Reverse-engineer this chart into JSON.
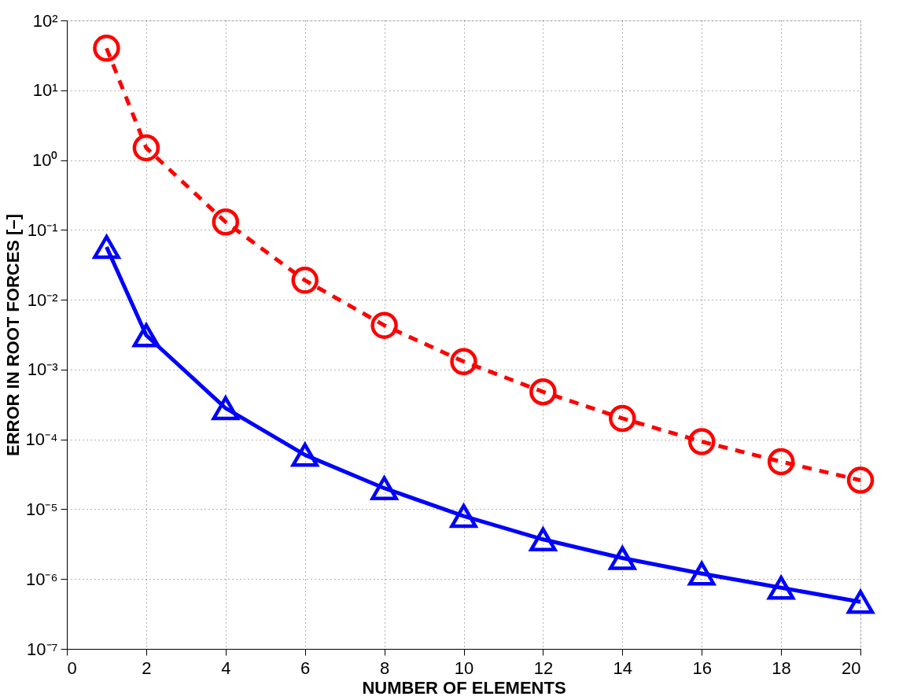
{
  "chart_data": {
    "type": "line",
    "xlabel": "NUMBER OF ELEMENTS",
    "ylabel": "ERROR IN ROOT FORCES [–]",
    "x": [
      1,
      2,
      4,
      6,
      8,
      10,
      12,
      14,
      16,
      18,
      20
    ],
    "series": [
      {
        "color": "#ff0000",
        "marker": "circle",
        "line_style": "dashed",
        "values": [
          40,
          1.5,
          0.13,
          0.019,
          0.0043,
          0.0013,
          0.00048,
          0.0002,
          9.3e-05,
          4.8e-05,
          2.6e-05
        ]
      },
      {
        "color": "#0000ff",
        "marker": "triangle",
        "line_style": "solid",
        "values": [
          0.057,
          0.0031,
          0.00028,
          6e-05,
          2e-05,
          8e-06,
          3.7e-06,
          2e-06,
          1.2e-06,
          7.5e-07,
          4.7e-07
        ]
      }
    ],
    "xlim": [
      0,
      20
    ],
    "xticks": [
      0,
      2,
      4,
      6,
      8,
      10,
      12,
      14,
      16,
      18,
      20
    ],
    "ylim": [
      1e-07,
      100
    ],
    "log": "y",
    "yticks": [
      {
        "value": 1e-07,
        "label": "10⁻⁷"
      },
      {
        "value": 1e-06,
        "label": "10⁻⁶"
      },
      {
        "value": 1e-05,
        "label": "10⁻⁵"
      },
      {
        "value": 0.0001,
        "label": "10⁻⁴"
      },
      {
        "value": 0.001,
        "label": "10⁻³"
      },
      {
        "value": 0.01,
        "label": "10⁻²"
      },
      {
        "value": 0.1,
        "label": "10⁻¹"
      },
      {
        "value": 1,
        "label": "10⁰"
      },
      {
        "value": 10,
        "label": "10¹"
      },
      {
        "value": 100,
        "label": "10²"
      }
    ],
    "grid": true
  }
}
